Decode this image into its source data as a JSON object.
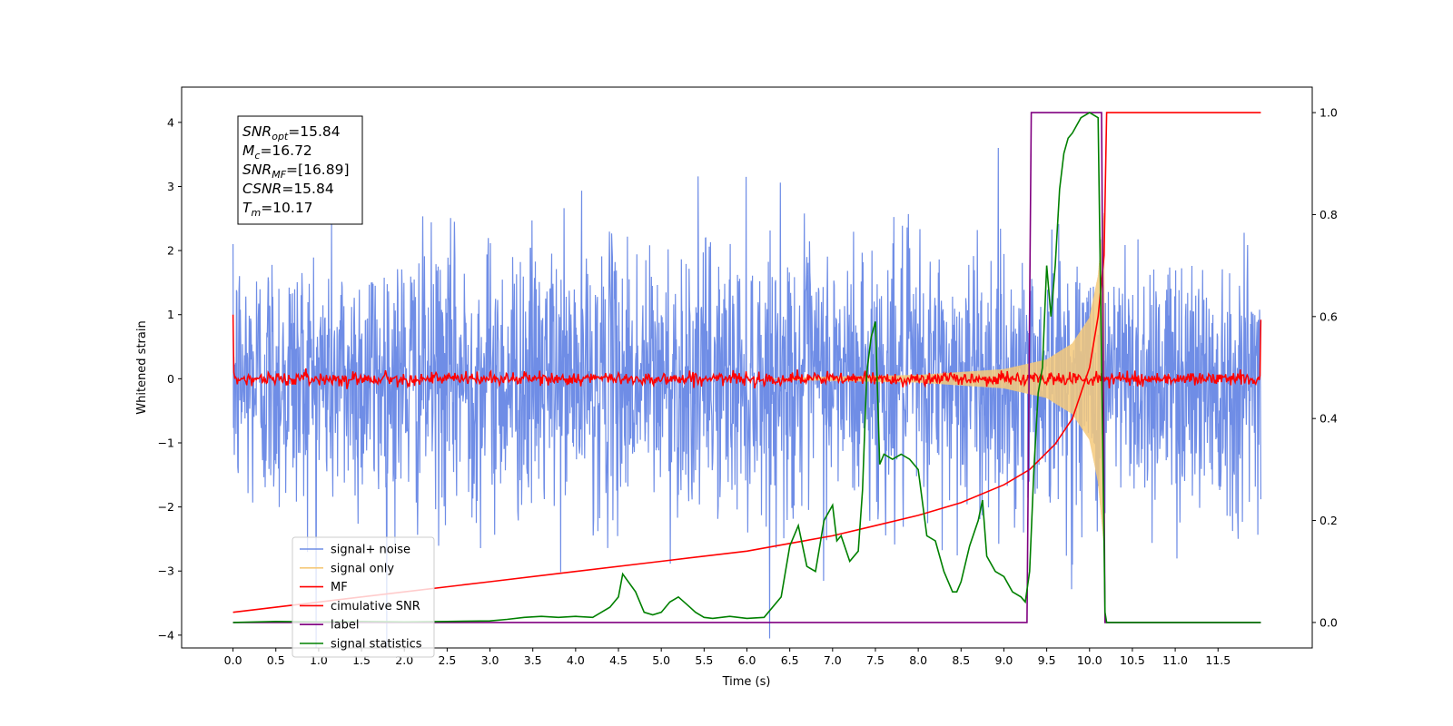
{
  "chart_data": {
    "type": "line",
    "xlabel": "Time (s)",
    "ylabel": "Whitened strain",
    "xlim": [
      -0.6,
      12.6
    ],
    "ylim": [
      -4.2,
      4.55
    ],
    "y2lim": [
      -0.05,
      1.05
    ],
    "x_ticks": [
      "0.0",
      "0.5",
      "1.0",
      "1.5",
      "2.0",
      "2.5",
      "3.0",
      "3.5",
      "4.0",
      "4.5",
      "5.0",
      "5.5",
      "6.0",
      "6.5",
      "7.0",
      "7.5",
      "8.0",
      "8.5",
      "9.0",
      "9.5",
      "10.0",
      "10.5",
      "11.0",
      "11.5"
    ],
    "y_ticks": [
      "4",
      "3",
      "2",
      "1",
      "0",
      "−1",
      "−2",
      "−3",
      "−4"
    ],
    "y2_ticks": [
      "1.0",
      "0.8",
      "0.6",
      "0.4",
      "0.2",
      "0.0"
    ],
    "legend_location": "lower-left",
    "annotation": {
      "lines": [
        {
          "base": "SNR",
          "sub": "opt",
          "rest": "=15.84"
        },
        {
          "base": "M",
          "sub": "c",
          "rest": "=16.72"
        },
        {
          "base": "SNR",
          "sub": "MF",
          "rest": "=[16.89]"
        },
        {
          "base": "CSNR",
          "sub": "",
          "rest": "=15.84"
        },
        {
          "base": "T",
          "sub": "m",
          "rest": "=10.17"
        }
      ]
    },
    "series": [
      {
        "name": "signal+ noise",
        "color": "#6f8de6",
        "axis": "left",
        "note_sigma": 1.0,
        "envelope_peaks_x": [
          0,
          12
        ]
      },
      {
        "name": "signal only",
        "color": "#f5c97a",
        "axis": "left",
        "envelope": {
          "x": [
            6.5,
            8.0,
            9.0,
            9.5,
            9.8,
            10.0,
            10.1,
            10.17
          ],
          "amp": [
            0.02,
            0.06,
            0.15,
            0.3,
            0.55,
            0.95,
            1.6,
            2.6
          ]
        }
      },
      {
        "name": "MF",
        "color": "#ff0000",
        "axis": "left",
        "noise_level": 0.05,
        "edge_values": [
          1.0,
          0.92
        ]
      },
      {
        "name": "cimulative SNR",
        "color": "#ff0000",
        "axis": "right",
        "x": [
          0,
          1,
          2,
          3,
          4,
          5,
          6,
          6.5,
          7,
          7.5,
          8,
          8.5,
          9,
          9.3,
          9.6,
          9.8,
          10.0,
          10.1,
          10.17,
          10.2,
          12
        ],
        "y": [
          0.02,
          0.04,
          0.06,
          0.08,
          0.1,
          0.12,
          0.14,
          0.155,
          0.17,
          0.19,
          0.21,
          0.235,
          0.27,
          0.3,
          0.35,
          0.4,
          0.5,
          0.6,
          0.72,
          1.0,
          1.0
        ]
      },
      {
        "name": "label",
        "color": "#800080",
        "axis": "right",
        "x": [
          0,
          9.27,
          9.32,
          10.14,
          10.18,
          12
        ],
        "y": [
          0,
          0,
          1,
          1,
          0,
          0
        ]
      },
      {
        "name": "signal statistics",
        "color": "#008000",
        "axis": "right",
        "x": [
          0,
          0.5,
          1,
          1.5,
          2,
          2.5,
          3,
          3.2,
          3.4,
          3.6,
          3.8,
          4.0,
          4.2,
          4.3,
          4.4,
          4.5,
          4.55,
          4.7,
          4.8,
          4.9,
          5.0,
          5.1,
          5.2,
          5.3,
          5.4,
          5.5,
          5.6,
          5.8,
          6.0,
          6.2,
          6.4,
          6.5,
          6.6,
          6.7,
          6.8,
          6.9,
          7.0,
          7.05,
          7.1,
          7.2,
          7.3,
          7.35,
          7.4,
          7.45,
          7.5,
          7.55,
          7.6,
          7.7,
          7.8,
          7.9,
          8.0,
          8.1,
          8.2,
          8.3,
          8.4,
          8.45,
          8.5,
          8.6,
          8.7,
          8.75,
          8.8,
          8.9,
          9.0,
          9.1,
          9.2,
          9.25,
          9.3,
          9.35,
          9.4,
          9.45,
          9.5,
          9.55,
          9.6,
          9.65,
          9.7,
          9.75,
          9.8,
          9.9,
          10.0,
          10.1,
          10.15,
          10.18,
          10.2,
          10.3,
          11,
          12
        ],
        "y": [
          0,
          0.002,
          0.001,
          0.002,
          0.001,
          0.002,
          0.003,
          0.006,
          0.01,
          0.012,
          0.01,
          0.012,
          0.01,
          0.02,
          0.03,
          0.05,
          0.095,
          0.06,
          0.02,
          0.015,
          0.02,
          0.04,
          0.05,
          0.035,
          0.02,
          0.01,
          0.008,
          0.012,
          0.008,
          0.01,
          0.05,
          0.15,
          0.19,
          0.11,
          0.1,
          0.2,
          0.23,
          0.16,
          0.17,
          0.12,
          0.14,
          0.26,
          0.49,
          0.56,
          0.59,
          0.31,
          0.33,
          0.32,
          0.33,
          0.32,
          0.3,
          0.17,
          0.16,
          0.1,
          0.06,
          0.06,
          0.08,
          0.15,
          0.2,
          0.24,
          0.13,
          0.1,
          0.09,
          0.06,
          0.05,
          0.04,
          0.1,
          0.3,
          0.45,
          0.5,
          0.7,
          0.6,
          0.7,
          0.85,
          0.92,
          0.95,
          0.96,
          0.99,
          1.0,
          0.99,
          0.4,
          0.02,
          0.0,
          0.0,
          0.0,
          0.0
        ]
      }
    ]
  }
}
